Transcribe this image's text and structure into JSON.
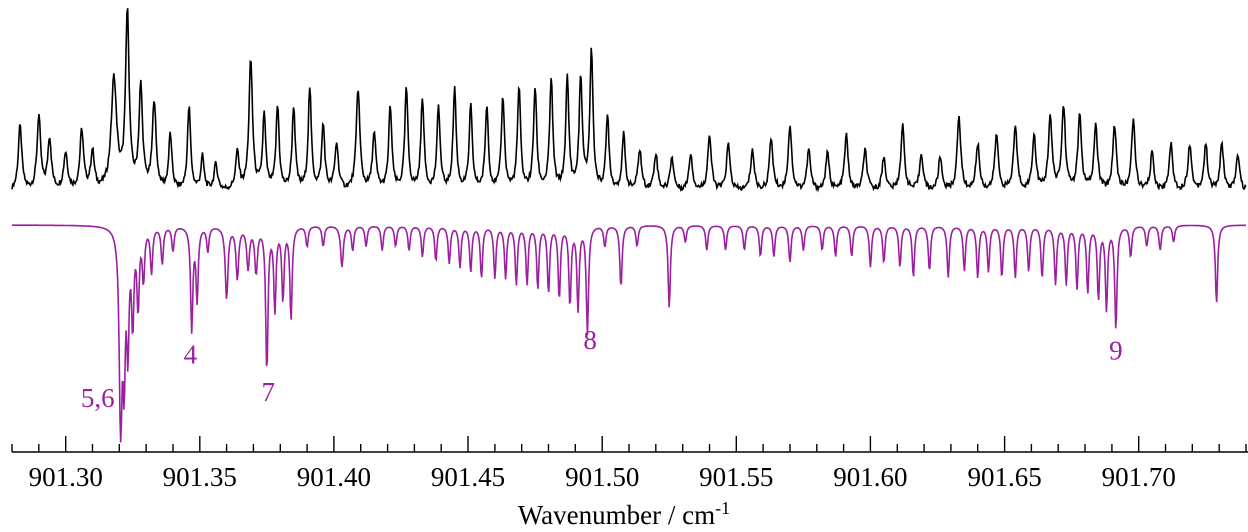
{
  "chart_data": {
    "type": "line",
    "xlabel": "Wavenumber / cm",
    "xlabel_superscript": "-1",
    "xlim": [
      901.28,
      901.74
    ],
    "xticks": [
      901.3,
      901.35,
      901.4,
      901.45,
      901.5,
      901.55,
      901.6,
      901.65,
      901.7
    ],
    "xtick_labels": [
      "901.30",
      "901.35",
      "901.40",
      "901.45",
      "901.50",
      "901.55",
      "901.60",
      "901.65",
      "901.70"
    ],
    "grid": false,
    "legend": "none",
    "series": [
      {
        "role": "experimental",
        "color": "#000000",
        "baseline": 0,
        "noise_level": 0.06,
        "peaks": [
          [
            901.283,
            0.35,
            0.0008
          ],
          [
            901.29,
            0.4,
            0.0008
          ],
          [
            901.294,
            0.28,
            0.0008
          ],
          [
            901.3,
            0.2,
            0.0009
          ],
          [
            901.306,
            0.32,
            0.0008
          ],
          [
            901.31,
            0.2,
            0.0008
          ],
          [
            901.318,
            0.6,
            0.0012
          ],
          [
            901.323,
            0.95,
            0.0008
          ],
          [
            901.328,
            0.55,
            0.0008
          ],
          [
            901.333,
            0.48,
            0.0008
          ],
          [
            901.339,
            0.3,
            0.0007
          ],
          [
            901.346,
            0.45,
            0.0007
          ],
          [
            901.351,
            0.18,
            0.0007
          ],
          [
            901.356,
            0.14,
            0.0008
          ],
          [
            901.364,
            0.2,
            0.0008
          ],
          [
            901.369,
            0.7,
            0.0008
          ],
          [
            901.374,
            0.4,
            0.0007
          ],
          [
            901.379,
            0.45,
            0.0007
          ],
          [
            901.385,
            0.45,
            0.0007
          ],
          [
            901.391,
            0.55,
            0.0007
          ],
          [
            901.396,
            0.35,
            0.0007
          ],
          [
            901.401,
            0.25,
            0.0008
          ],
          [
            901.409,
            0.55,
            0.0008
          ],
          [
            901.415,
            0.3,
            0.0008
          ],
          [
            901.421,
            0.45,
            0.0007
          ],
          [
            901.427,
            0.55,
            0.0007
          ],
          [
            901.433,
            0.5,
            0.0007
          ],
          [
            901.439,
            0.45,
            0.0007
          ],
          [
            901.445,
            0.55,
            0.0007
          ],
          [
            901.451,
            0.45,
            0.0007
          ],
          [
            901.457,
            0.45,
            0.0007
          ],
          [
            901.463,
            0.5,
            0.0007
          ],
          [
            901.469,
            0.55,
            0.0007
          ],
          [
            901.475,
            0.55,
            0.0007
          ],
          [
            901.481,
            0.6,
            0.0007
          ],
          [
            901.487,
            0.6,
            0.0007
          ],
          [
            901.492,
            0.6,
            0.0007
          ],
          [
            901.496,
            0.75,
            0.0007
          ],
          [
            901.502,
            0.4,
            0.0007
          ],
          [
            901.508,
            0.3,
            0.0007
          ],
          [
            901.514,
            0.22,
            0.0008
          ],
          [
            901.52,
            0.2,
            0.0008
          ],
          [
            901.526,
            0.18,
            0.0008
          ],
          [
            901.533,
            0.2,
            0.0008
          ],
          [
            901.54,
            0.3,
            0.0008
          ],
          [
            901.547,
            0.25,
            0.0008
          ],
          [
            901.556,
            0.22,
            0.0008
          ],
          [
            901.563,
            0.28,
            0.0008
          ],
          [
            901.57,
            0.35,
            0.0008
          ],
          [
            901.577,
            0.22,
            0.0008
          ],
          [
            901.584,
            0.2,
            0.0008
          ],
          [
            901.591,
            0.3,
            0.0008
          ],
          [
            901.598,
            0.22,
            0.0008
          ],
          [
            901.605,
            0.18,
            0.0008
          ],
          [
            901.612,
            0.35,
            0.0008
          ],
          [
            901.619,
            0.2,
            0.0008
          ],
          [
            901.626,
            0.18,
            0.0008
          ],
          [
            901.633,
            0.4,
            0.0008
          ],
          [
            901.64,
            0.25,
            0.0008
          ],
          [
            901.647,
            0.3,
            0.0008
          ],
          [
            901.654,
            0.35,
            0.0008
          ],
          [
            901.661,
            0.3,
            0.0008
          ],
          [
            901.667,
            0.4,
            0.0008
          ],
          [
            901.672,
            0.45,
            0.0008
          ],
          [
            901.678,
            0.4,
            0.0008
          ],
          [
            901.684,
            0.35,
            0.0008
          ],
          [
            901.691,
            0.35,
            0.0008
          ],
          [
            901.698,
            0.38,
            0.0008
          ],
          [
            901.705,
            0.2,
            0.0008
          ],
          [
            901.712,
            0.25,
            0.0008
          ],
          [
            901.719,
            0.25,
            0.0008
          ],
          [
            901.725,
            0.25,
            0.0008
          ],
          [
            901.731,
            0.25,
            0.0008
          ],
          [
            901.737,
            0.2,
            0.0008
          ]
        ]
      },
      {
        "role": "simulated",
        "color": "#9b1fa0",
        "baseline": 0,
        "peaks": [
          [
            901.3205,
            1.0,
            0.0006
          ],
          [
            901.3218,
            0.65,
            0.0005
          ],
          [
            901.3232,
            0.55,
            0.0005
          ],
          [
            901.325,
            0.45,
            0.0005
          ],
          [
            901.327,
            0.38,
            0.0005
          ],
          [
            901.329,
            0.25,
            0.0005
          ],
          [
            901.332,
            0.22,
            0.0005
          ],
          [
            901.336,
            0.18,
            0.0005
          ],
          [
            901.34,
            0.12,
            0.0005
          ],
          [
            901.347,
            0.5,
            0.0005
          ],
          [
            901.349,
            0.35,
            0.0005
          ],
          [
            901.353,
            0.12,
            0.0005
          ],
          [
            901.36,
            0.35,
            0.0006
          ],
          [
            901.364,
            0.25,
            0.0006
          ],
          [
            901.368,
            0.2,
            0.0006
          ],
          [
            901.371,
            0.22,
            0.0006
          ],
          [
            901.375,
            0.7,
            0.0005
          ],
          [
            901.378,
            0.4,
            0.0005
          ],
          [
            901.381,
            0.35,
            0.0005
          ],
          [
            901.384,
            0.45,
            0.0005
          ],
          [
            901.39,
            0.1,
            0.0005
          ],
          [
            901.396,
            0.1,
            0.0005
          ],
          [
            901.403,
            0.2,
            0.0006
          ],
          [
            901.407,
            0.12,
            0.0005
          ],
          [
            901.412,
            0.1,
            0.0005
          ],
          [
            901.418,
            0.12,
            0.0005
          ],
          [
            901.423,
            0.1,
            0.0005
          ],
          [
            901.428,
            0.12,
            0.0005
          ],
          [
            901.433,
            0.15,
            0.0005
          ],
          [
            901.438,
            0.17,
            0.0005
          ],
          [
            901.443,
            0.18,
            0.0005
          ],
          [
            901.447,
            0.2,
            0.0005
          ],
          [
            901.451,
            0.22,
            0.0005
          ],
          [
            901.455,
            0.25,
            0.0005
          ],
          [
            901.46,
            0.25,
            0.0005
          ],
          [
            901.464,
            0.25,
            0.0005
          ],
          [
            901.468,
            0.28,
            0.0005
          ],
          [
            901.472,
            0.28,
            0.0005
          ],
          [
            901.476,
            0.3,
            0.0005
          ],
          [
            901.48,
            0.32,
            0.0005
          ],
          [
            901.484,
            0.35,
            0.0005
          ],
          [
            901.488,
            0.38,
            0.0005
          ],
          [
            901.491,
            0.4,
            0.0005
          ],
          [
            901.4945,
            0.52,
            0.0005
          ],
          [
            901.501,
            0.1,
            0.0005
          ],
          [
            901.507,
            0.3,
            0.0005
          ],
          [
            901.513,
            0.1,
            0.0005
          ],
          [
            901.525,
            0.4,
            0.0005
          ],
          [
            901.531,
            0.08,
            0.0005
          ],
          [
            901.539,
            0.12,
            0.0005
          ],
          [
            901.546,
            0.12,
            0.0005
          ],
          [
            901.553,
            0.12,
            0.0005
          ],
          [
            901.559,
            0.15,
            0.0005
          ],
          [
            901.564,
            0.15,
            0.0005
          ],
          [
            901.57,
            0.18,
            0.0005
          ],
          [
            901.575,
            0.12,
            0.0005
          ],
          [
            901.582,
            0.12,
            0.0005
          ],
          [
            901.587,
            0.15,
            0.0005
          ],
          [
            901.593,
            0.15,
            0.0005
          ],
          [
            901.6,
            0.2,
            0.0005
          ],
          [
            901.605,
            0.18,
            0.0005
          ],
          [
            901.611,
            0.2,
            0.0005
          ],
          [
            901.616,
            0.25,
            0.0005
          ],
          [
            901.622,
            0.22,
            0.0005
          ],
          [
            901.629,
            0.25,
            0.0005
          ],
          [
            901.635,
            0.22,
            0.0005
          ],
          [
            901.64,
            0.25,
            0.0005
          ],
          [
            901.644,
            0.22,
            0.0005
          ],
          [
            901.649,
            0.25,
            0.0005
          ],
          [
            901.654,
            0.25,
            0.0005
          ],
          [
            901.659,
            0.22,
            0.0005
          ],
          [
            901.664,
            0.25,
            0.0005
          ],
          [
            901.669,
            0.28,
            0.0005
          ],
          [
            901.673,
            0.28,
            0.0005
          ],
          [
            901.677,
            0.3,
            0.0005
          ],
          [
            901.681,
            0.32,
            0.0005
          ],
          [
            901.685,
            0.35,
            0.0005
          ],
          [
            901.688,
            0.4,
            0.0005
          ],
          [
            901.6915,
            0.5,
            0.0005
          ],
          [
            901.697,
            0.15,
            0.0005
          ],
          [
            901.703,
            0.1,
            0.0005
          ],
          [
            901.708,
            0.12,
            0.0005
          ],
          [
            901.713,
            0.08,
            0.0005
          ],
          [
            901.729,
            0.38,
            0.0005
          ]
        ]
      }
    ],
    "annotations": [
      {
        "text": "5,6",
        "x": 901.312,
        "series": "simulated",
        "level": 0.88
      },
      {
        "text": "4",
        "x": 901.3465,
        "series": "simulated",
        "level": 0.67
      },
      {
        "text": "7",
        "x": 901.3755,
        "series": "simulated",
        "level": 0.85
      },
      {
        "text": "8",
        "x": 901.4955,
        "series": "simulated",
        "level": 0.6
      },
      {
        "text": "9",
        "x": 901.6915,
        "series": "simulated",
        "level": 0.65
      }
    ],
    "annotation_color": "#9b1fa0"
  }
}
